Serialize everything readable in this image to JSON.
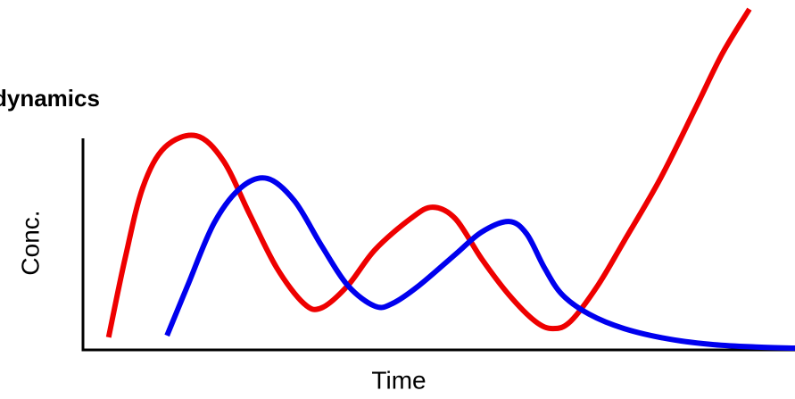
{
  "chart_data": {
    "type": "line",
    "title": "dynamics",
    "xlabel": "Time",
    "ylabel": "Conc.",
    "xlim": [
      0,
      100
    ],
    "ylim": [
      0,
      100
    ],
    "series": [
      {
        "color": "#ee0000",
        "x": [
          3.6,
          5.9,
          8.4,
          11.5,
          15.9,
          19.7,
          23.4,
          27.2,
          31.0,
          33.5,
          37.2,
          41.0,
          46.0,
          49.1,
          52.3,
          56.0,
          59.8,
          63.5,
          66.0,
          68.5,
          72.3,
          76.0,
          81.1,
          86.1,
          89.8,
          93.6
        ],
        "values": [
          3.6,
          26.0,
          46.4,
          57.9,
          61.2,
          54.1,
          38.8,
          23.5,
          13.3,
          12.0,
          18.4,
          28.6,
          37.5,
          40.8,
          37.5,
          26.0,
          15.8,
          8.2,
          6.1,
          8.2,
          18.4,
          31.1,
          49.0,
          69.4,
          84.7,
          97.4
        ]
      },
      {
        "color": "#0000ee",
        "x": [
          11.8,
          14.7,
          18.4,
          22.2,
          25.9,
          29.7,
          33.5,
          37.2,
          41.0,
          43.5,
          47.2,
          52.3,
          56.0,
          59.8,
          62.3,
          64.8,
          67.3,
          71.1,
          76.0,
          82.3,
          88.6,
          94.9,
          100
        ],
        "values": [
          4.1,
          18.4,
          36.2,
          46.4,
          49.0,
          42.6,
          29.8,
          18.4,
          12.5,
          13.3,
          18.4,
          27.3,
          33.7,
          36.7,
          33.2,
          23.5,
          15.8,
          10.2,
          6.1,
          3.1,
          1.5,
          0.8,
          0.5
        ]
      }
    ]
  }
}
